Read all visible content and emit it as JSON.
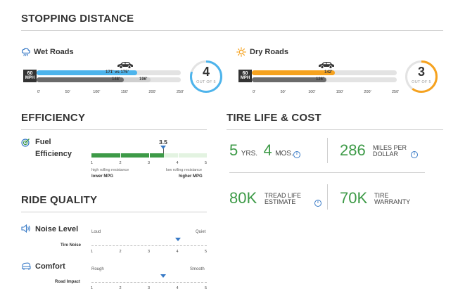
{
  "stopping": {
    "title": "STOPPING DISTANCE",
    "wet": {
      "label": "Wet Roads",
      "icon": "rain-cloud-icon",
      "mph_top": "60",
      "mph_bottom": "MPH",
      "bar1_text": "171' vs 175'",
      "bar2_left": "148'",
      "bar2_right": "196'",
      "ticks": [
        "0'",
        "50'",
        "100'",
        "150'",
        "200'",
        "250'"
      ],
      "score": "4",
      "score_sub": "OUT OF 5",
      "score_fraction": 0.8,
      "color": "#4db4ec"
    },
    "dry": {
      "label": "Dry Roads",
      "icon": "sun-icon",
      "mph_top": "60",
      "mph_bottom": "MPH",
      "bar1_text": "142'",
      "bar2_text": "126'",
      "ticks": [
        "0'",
        "50'",
        "100'",
        "150'",
        "200'",
        "250'"
      ],
      "score": "3",
      "score_sub": "OUT OF 5",
      "score_fraction": 0.6,
      "color": "#f6a21e"
    }
  },
  "efficiency": {
    "title": "EFFICIENCY",
    "label_line1": "Fuel",
    "label_line2": "Efficiency",
    "icon": "fuel-gauge-icon",
    "value": "3.5",
    "ticks": [
      "1",
      "2",
      "3",
      "4",
      "5"
    ],
    "low_caption": "high rolling resistance",
    "low_label": "lower MPG",
    "high_caption": "low rolling resistance",
    "high_label": "higher MPG"
  },
  "ride": {
    "title": "RIDE QUALITY",
    "noise": {
      "label": "Noise Level",
      "icon": "speaker-icon",
      "low": "Loud",
      "high": "Quiet",
      "row_label": "Tire Noise",
      "ticks": [
        "1",
        "2",
        "3",
        "4",
        "5"
      ],
      "value": 4
    },
    "comfort": {
      "label": "Comfort",
      "icon": "car-seat-icon",
      "low": "Rough",
      "high": "Smooth",
      "row_label": "Road Impact",
      "ticks": [
        "1",
        "2",
        "3",
        "4",
        "5"
      ],
      "value": 3.5
    }
  },
  "life": {
    "title": "TIRE LIFE & COST",
    "years_num": "5",
    "years_unit": "YRS.",
    "months_num": "4",
    "months_unit": "MOS.",
    "miles_num": "286",
    "miles_unit_1": "MILES PER",
    "miles_unit_2": "DOLLAR",
    "tread_num": "80K",
    "tread_unit_1": "TREAD LIFE",
    "tread_unit_2": "ESTIMATE",
    "warranty_num": "70K",
    "warranty_unit_1": "TIRE",
    "warranty_unit_2": "WARRANTY",
    "info_glyph": "i"
  }
}
